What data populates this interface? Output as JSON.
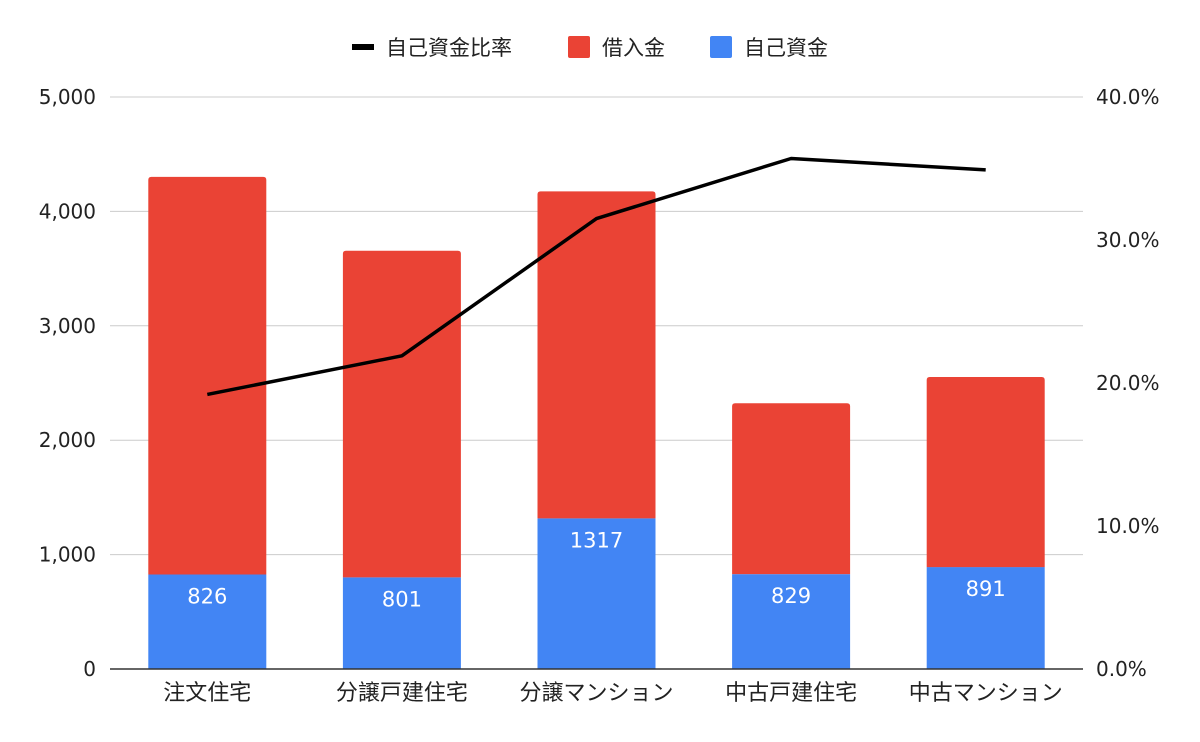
{
  "chart_data": {
    "type": "bar",
    "stacked": true,
    "categories": [
      "注文住宅",
      "分譲戸建住宅",
      "分譲マンション",
      "中古戸建住宅",
      "中古マンション"
    ],
    "series": [
      {
        "name": "自己資金",
        "kind": "bar",
        "axis": "left",
        "color": "#4285f4",
        "values": [
          826,
          801,
          1317,
          829,
          891
        ],
        "labels": [
          "826",
          "801",
          "1317",
          "829",
          "891"
        ]
      },
      {
        "name": "借入金",
        "kind": "bar",
        "axis": "left",
        "color": "#ea4335",
        "values": [
          3476,
          2855,
          2858,
          1494,
          1661
        ]
      },
      {
        "name": "自己資金比率",
        "kind": "line",
        "axis": "right",
        "color": "#000000",
        "values": [
          19.2,
          21.9,
          31.5,
          35.7,
          34.9
        ]
      }
    ],
    "left_axis": {
      "min": 0,
      "max": 5000,
      "ticks": [
        "0",
        "1,000",
        "2,000",
        "3,000",
        "4,000",
        "5,000"
      ]
    },
    "right_axis": {
      "min": 0,
      "max": 40,
      "ticks": [
        "0.0%",
        "10.0%",
        "20.0%",
        "30.0%",
        "40.0%"
      ]
    },
    "legend": {
      "position": "top",
      "items": [
        {
          "label": "自己資金比率",
          "color": "#000000",
          "shape": "line"
        },
        {
          "label": "借入金",
          "color": "#ea4335",
          "shape": "box"
        },
        {
          "label": "自己資金",
          "color": "#4285f4",
          "shape": "box"
        }
      ]
    },
    "grid": true
  }
}
